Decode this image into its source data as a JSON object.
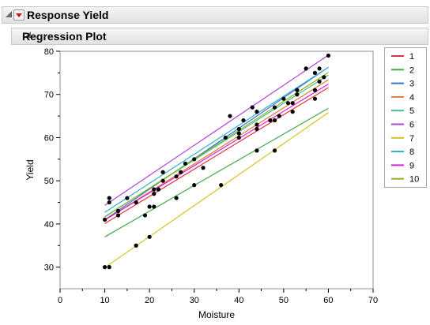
{
  "header": {
    "response_title": "Response Yield",
    "plot_title": "Regression Plot"
  },
  "chart_data": {
    "type": "scatter",
    "xlabel": "Moisture",
    "ylabel": "Yield",
    "xlim": [
      0,
      70
    ],
    "ylim": [
      25,
      80
    ],
    "xticks": [
      0,
      10,
      20,
      30,
      40,
      50,
      60,
      70
    ],
    "yticks": [
      30,
      40,
      50,
      60,
      70,
      80
    ],
    "grid": false,
    "legend_position": "right",
    "points": [
      [
        10,
        41
      ],
      [
        10,
        30
      ],
      [
        11,
        30
      ],
      [
        11,
        45
      ],
      [
        11,
        46
      ],
      [
        13,
        42
      ],
      [
        13,
        43
      ],
      [
        15,
        46
      ],
      [
        17,
        35
      ],
      [
        17,
        45
      ],
      [
        19,
        42
      ],
      [
        20,
        37
      ],
      [
        20,
        44
      ],
      [
        21,
        44
      ],
      [
        21,
        47
      ],
      [
        21,
        48
      ],
      [
        22,
        48
      ],
      [
        23,
        50
      ],
      [
        23,
        52
      ],
      [
        26,
        46
      ],
      [
        26,
        51
      ],
      [
        27,
        52
      ],
      [
        28,
        54
      ],
      [
        30,
        49
      ],
      [
        30,
        55
      ],
      [
        32,
        53
      ],
      [
        36,
        49
      ],
      [
        37,
        60
      ],
      [
        38,
        65
      ],
      [
        40,
        60
      ],
      [
        40,
        61
      ],
      [
        40,
        62
      ],
      [
        41,
        64
      ],
      [
        43,
        67
      ],
      [
        44,
        57
      ],
      [
        44,
        62
      ],
      [
        44,
        63
      ],
      [
        44,
        66
      ],
      [
        47,
        64
      ],
      [
        48,
        57
      ],
      [
        48,
        64
      ],
      [
        48,
        67
      ],
      [
        49,
        65
      ],
      [
        50,
        69
      ],
      [
        51,
        68
      ],
      [
        52,
        68
      ],
      [
        52,
        66
      ],
      [
        53,
        70
      ],
      [
        53,
        71
      ],
      [
        55,
        76
      ],
      [
        57,
        69
      ],
      [
        57,
        71
      ],
      [
        57,
        75
      ],
      [
        58,
        73
      ],
      [
        58,
        76
      ],
      [
        59,
        74
      ],
      [
        60,
        79
      ]
    ],
    "series": [
      {
        "name": "1",
        "color": "#e0343c",
        "x": [
          10,
          60
        ],
        "y": [
          40.1,
          71.6
        ]
      },
      {
        "name": "2",
        "color": "#3fab4a",
        "x": [
          10,
          60
        ],
        "y": [
          37.0,
          66.8
        ]
      },
      {
        "name": "3",
        "color": "#3a6fd8",
        "x": [
          10,
          60
        ],
        "y": [
          41.0,
          76.3
        ]
      },
      {
        "name": "4",
        "color": "#e07b39",
        "x": [
          10,
          60
        ],
        "y": [
          40.9,
          73.4
        ]
      },
      {
        "name": "5",
        "color": "#3bc48a",
        "x": [
          10,
          60
        ],
        "y": [
          41.7,
          74.5
        ]
      },
      {
        "name": "6",
        "color": "#b240e0",
        "x": [
          10,
          60
        ],
        "y": [
          44.3,
          79.1
        ]
      },
      {
        "name": "7",
        "color": "#d4c21c",
        "x": [
          10,
          60
        ],
        "y": [
          29.9,
          65.8
        ]
      },
      {
        "name": "8",
        "color": "#2cb0c8",
        "x": [
          10,
          60
        ],
        "y": [
          42.7,
          76.3
        ]
      },
      {
        "name": "9",
        "color": "#d81fd8",
        "x": [
          10,
          60
        ],
        "y": [
          40.9,
          72.4
        ]
      },
      {
        "name": "10",
        "color": "#90b020",
        "x": [
          10,
          60
        ],
        "y": [
          41.6,
          75.1
        ]
      }
    ]
  }
}
